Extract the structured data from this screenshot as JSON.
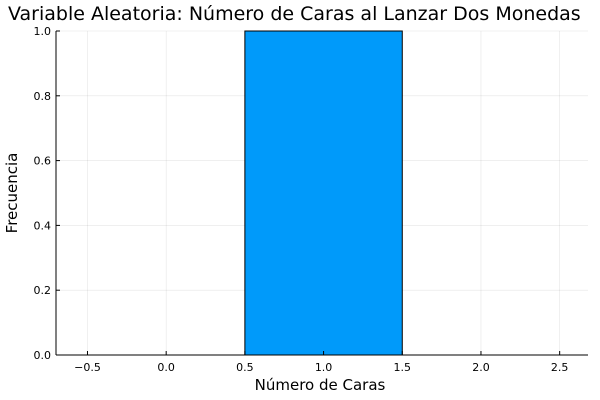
{
  "chart_data": {
    "type": "bar",
    "title": "Variable Aleatoria: Número de Caras al Lanzar Dos Monedas",
    "xlabel": "Número de Caras",
    "ylabel": "Frecuencia",
    "bars": [
      {
        "x_start": 0.5,
        "x_end": 1.5,
        "value": 1.0
      }
    ],
    "xlim": [
      -0.7,
      2.68
    ],
    "ylim": [
      0,
      1.0
    ],
    "xticks": [
      -0.5,
      0.0,
      0.5,
      1.0,
      1.5,
      2.0,
      2.5
    ],
    "xtick_labels": [
      "−0.5",
      "0.0",
      "0.5",
      "1.0",
      "1.5",
      "2.0",
      "2.5"
    ],
    "yticks": [
      0,
      0.2,
      0.4,
      0.6,
      0.8,
      1.0
    ],
    "ytick_labels": [
      "0.0",
      "0.2",
      "0.4",
      "0.6",
      "0.8",
      "1.0"
    ],
    "grid": true,
    "legend": "none",
    "colors": {
      "bar_fill": "#009AFA",
      "bar_edge": "#000000"
    }
  }
}
